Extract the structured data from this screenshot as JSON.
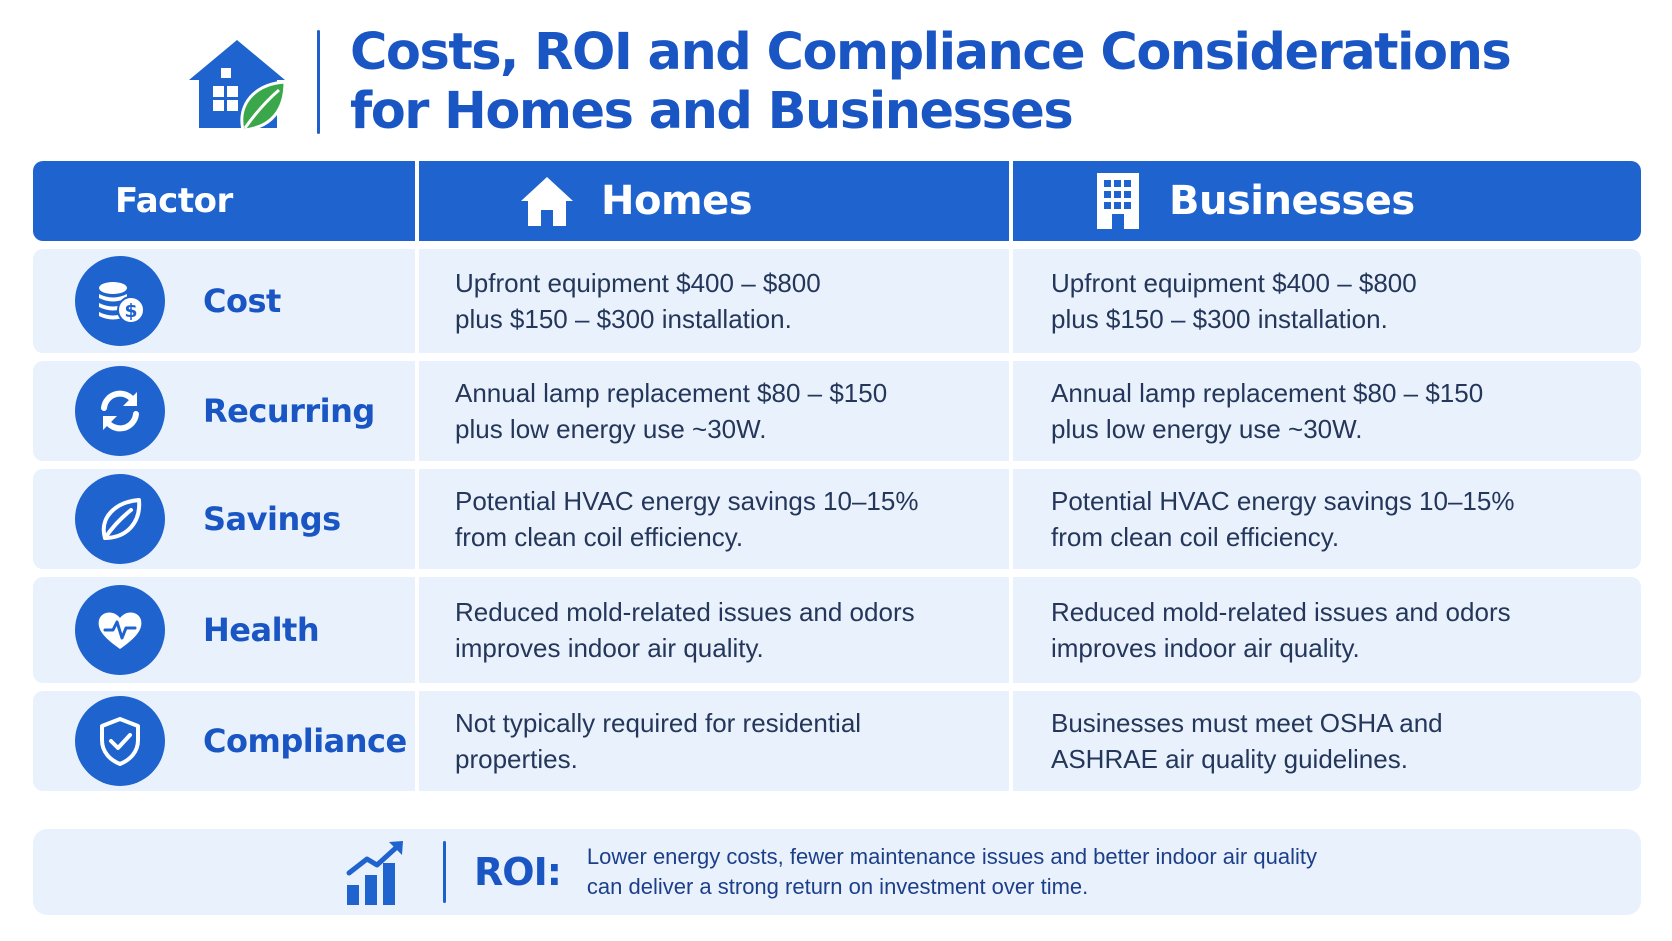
{
  "header": {
    "title_line1": "Costs, ROI and Compliance Considerations",
    "title_line2": "for Homes and Businesses",
    "logo_icon": "house-leaf-icon"
  },
  "table": {
    "columns": {
      "factor": "Factor",
      "homes": "Homes",
      "businesses": "Businesses"
    },
    "rows": [
      {
        "icon": "coins-dollar-icon",
        "factor": "Cost",
        "homes": "Upfront equipment $400 – $800 plus $150 – $300 installation.",
        "businesses": "Upfront equipment $400 – $800 plus $150 – $300 installation."
      },
      {
        "icon": "refresh-arrows-icon",
        "factor": "Recurring",
        "homes": "Annual lamp replacement $80 – $150 plus low energy use ~30W.",
        "businesses": "Annual lamp replacement $80 – $150 plus low energy use ~30W."
      },
      {
        "icon": "leaf-icon",
        "factor": "Savings",
        "homes": "Potential HVAC energy savings 10–15% from clean coil efficiency.",
        "businesses": "Potential HVAC energy savings 10–15% from clean coil efficiency."
      },
      {
        "icon": "heart-pulse-icon",
        "factor": "Health",
        "homes": "Reduced mold-related issues and odors improves indoor air quality.",
        "businesses": "Reduced mold-related issues and odors improves indoor air quality."
      },
      {
        "icon": "shield-check-icon",
        "factor": "Compliance",
        "homes": "Not typically required for residential properties.",
        "businesses": "Businesses must meet OSHA and ASHRAE air quality guidelines."
      }
    ]
  },
  "roi": {
    "icon": "growth-chart-icon",
    "label": "ROI:",
    "line1": "Lower energy costs, fewer maintenance issues and better indoor air quality",
    "line2": "can deliver a strong return on investment over time."
  },
  "colors": {
    "primary": "#1f63cf",
    "title": "#1a55c4",
    "row_bg": "#e9f2fc",
    "leaf": "#3aa84a"
  }
}
